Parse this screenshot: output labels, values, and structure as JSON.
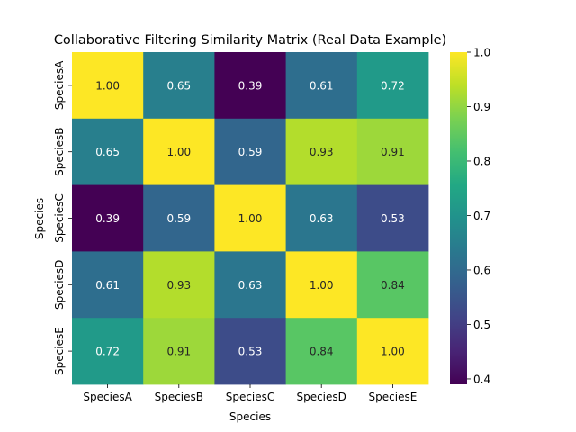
{
  "chart_data": {
    "type": "heatmap",
    "title": "Collaborative Filtering Similarity Matrix (Real Data Example)",
    "xlabel": "Species",
    "ylabel": "Species",
    "x_categories": [
      "SpeciesA",
      "SpeciesB",
      "SpeciesC",
      "SpeciesD",
      "SpeciesE"
    ],
    "y_categories": [
      "SpeciesA",
      "SpeciesB",
      "SpeciesC",
      "SpeciesD",
      "SpeciesE"
    ],
    "values": [
      [
        1.0,
        0.65,
        0.39,
        0.61,
        0.72
      ],
      [
        0.65,
        1.0,
        0.59,
        0.93,
        0.91
      ],
      [
        0.39,
        0.59,
        1.0,
        0.63,
        0.53
      ],
      [
        0.61,
        0.93,
        0.63,
        1.0,
        0.84
      ],
      [
        0.72,
        0.91,
        0.53,
        0.84,
        1.0
      ]
    ],
    "annotation_format": "0.00",
    "colormap": "viridis",
    "colorbar": {
      "range": [
        0.39,
        1.0
      ],
      "ticks": [
        "0.4",
        "0.5",
        "0.6",
        "0.7",
        "0.8",
        "0.9",
        "1.0"
      ]
    },
    "grid": false,
    "legend": "colorbar-right"
  }
}
